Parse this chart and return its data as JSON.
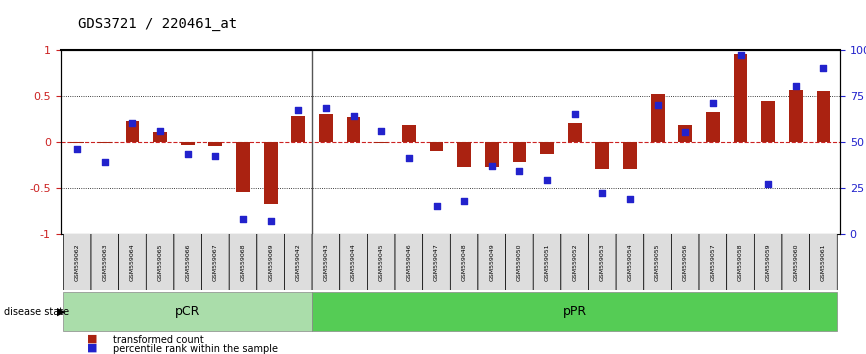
{
  "title": "GDS3721 / 220461_at",
  "samples": [
    "GSM559062",
    "GSM559063",
    "GSM559064",
    "GSM559065",
    "GSM559066",
    "GSM559067",
    "GSM559068",
    "GSM559069",
    "GSM559042",
    "GSM559043",
    "GSM559044",
    "GSM559045",
    "GSM559046",
    "GSM559047",
    "GSM559048",
    "GSM559049",
    "GSM559050",
    "GSM559051",
    "GSM559052",
    "GSM559053",
    "GSM559054",
    "GSM559055",
    "GSM559056",
    "GSM559057",
    "GSM559058",
    "GSM559059",
    "GSM559060",
    "GSM559061"
  ],
  "transformed_count": [
    -0.02,
    -0.02,
    0.22,
    0.1,
    -0.04,
    -0.05,
    -0.55,
    -0.68,
    0.28,
    0.3,
    0.27,
    -0.02,
    0.18,
    -0.1,
    -0.28,
    -0.28,
    -0.22,
    -0.14,
    0.2,
    -0.3,
    -0.3,
    0.52,
    0.18,
    0.32,
    0.95,
    0.44,
    0.56,
    0.55
  ],
  "percentile_rank": [
    46,
    39,
    60,
    56,
    43,
    42,
    8,
    7,
    67,
    68,
    64,
    56,
    41,
    15,
    18,
    37,
    34,
    29,
    65,
    22,
    19,
    70,
    55,
    71,
    97,
    27,
    80,
    90
  ],
  "pCR_count": 9,
  "pPR_count": 19,
  "bar_color": "#aa2211",
  "dot_color": "#2222cc",
  "pCR_color": "#aaddaa",
  "pPR_color": "#55cc55",
  "ylim": [
    -1,
    1
  ],
  "y2lim": [
    0,
    100
  ],
  "dotted_lines": [
    0.5,
    -0.5
  ],
  "zero_line_color": "#cc2222",
  "legend_bar": "transformed count",
  "legend_dot": "percentile rank within the sample"
}
